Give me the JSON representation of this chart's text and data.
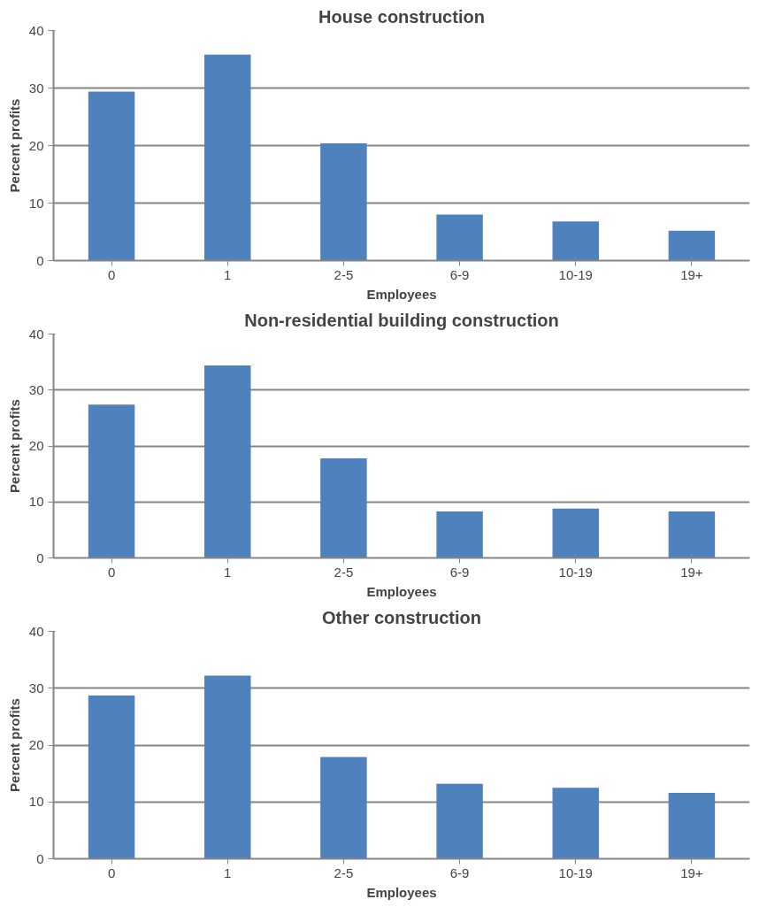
{
  "chart_data": [
    {
      "type": "bar",
      "title": "House construction",
      "xlabel": "Employees",
      "ylabel": "Percent profits",
      "categories": [
        "0",
        "1",
        "2-5",
        "6-9",
        "10-19",
        "19+"
      ],
      "values": [
        29.4,
        35.8,
        20.4,
        8.0,
        6.8,
        5.2
      ],
      "color": "#4f81bd",
      "ylim": [
        0,
        40
      ],
      "yticks": [
        0,
        10,
        20,
        30,
        40
      ],
      "grid": "y"
    },
    {
      "type": "bar",
      "title": "Non-residential building construction",
      "xlabel": "Employees",
      "ylabel": "Percent profits",
      "categories": [
        "0",
        "1",
        "2-5",
        "6-9",
        "10-19",
        "19+"
      ],
      "values": [
        27.4,
        34.4,
        17.8,
        8.3,
        8.8,
        8.3
      ],
      "color": "#4f81bd",
      "ylim": [
        0,
        40
      ],
      "yticks": [
        0,
        10,
        20,
        30,
        40
      ],
      "grid": "y"
    },
    {
      "type": "bar",
      "title": "Other construction",
      "xlabel": "Employees",
      "ylabel": "Percent profits",
      "categories": [
        "0",
        "1",
        "2-5",
        "6-9",
        "10-19",
        "19+"
      ],
      "values": [
        28.7,
        32.2,
        17.9,
        13.2,
        12.5,
        11.6
      ],
      "color": "#4f81bd",
      "ylim": [
        0,
        40
      ],
      "yticks": [
        0,
        10,
        20,
        30,
        40
      ],
      "grid": "y"
    }
  ]
}
